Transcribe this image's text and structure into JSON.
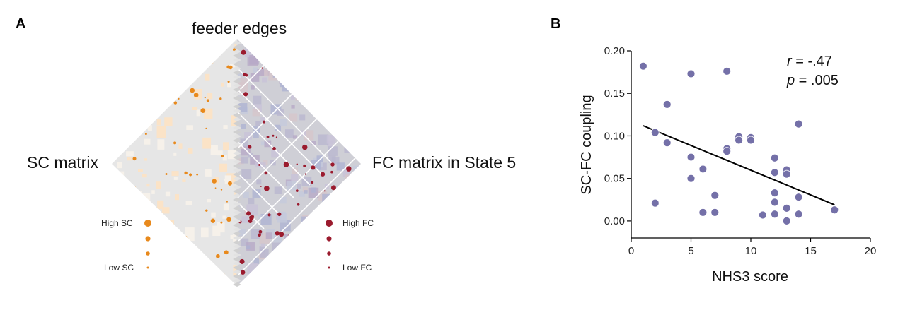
{
  "panel_a": {
    "label": "A",
    "top_label": "feeder edges",
    "left_label": "SC matrix",
    "right_label": "FC matrix in State 5",
    "legend_sc": {
      "high": "High SC",
      "low": "Low SC",
      "color": "#e8891c"
    },
    "legend_fc": {
      "high": "High FC",
      "low": "Low FC",
      "color": "#9b1b2e"
    }
  },
  "panel_b": {
    "label": "B",
    "stat_r_label": "r",
    "stat_r_value": " = -.47",
    "stat_p_label": "p",
    "stat_p_value": " = .005"
  },
  "chart_data": {
    "type": "scatter",
    "xlabel": "NHS3 score",
    "ylabel": "SC-FC coupling",
    "xlim": [
      0,
      20
    ],
    "ylim": [
      -0.02,
      0.2
    ],
    "xticks": [
      0,
      5,
      10,
      15,
      20
    ],
    "yticks": [
      0.0,
      0.05,
      0.1,
      0.15,
      0.2
    ],
    "ytick_labels": [
      "0.00",
      "0.05",
      "0.10",
      "0.15",
      "0.20"
    ],
    "point_color": "#7470a8",
    "points": [
      [
        1,
        0.182
      ],
      [
        2,
        0.104
      ],
      [
        2,
        0.021
      ],
      [
        3,
        0.137
      ],
      [
        3,
        0.092
      ],
      [
        5,
        0.173
      ],
      [
        5,
        0.075
      ],
      [
        5,
        0.05
      ],
      [
        6,
        0.061
      ],
      [
        6,
        0.01
      ],
      [
        7,
        0.03
      ],
      [
        7,
        0.01
      ],
      [
        8,
        0.176
      ],
      [
        8,
        0.085
      ],
      [
        8,
        0.082
      ],
      [
        9,
        0.099
      ],
      [
        9,
        0.095
      ],
      [
        10,
        0.098
      ],
      [
        10,
        0.095
      ],
      [
        11,
        0.007
      ],
      [
        12,
        0.074
      ],
      [
        12,
        0.057
      ],
      [
        12,
        0.033
      ],
      [
        12,
        0.022
      ],
      [
        12,
        0.008
      ],
      [
        13,
        0.06
      ],
      [
        13,
        0.055
      ],
      [
        13,
        0.015
      ],
      [
        13,
        0.0
      ],
      [
        14,
        0.114
      ],
      [
        14,
        0.028
      ],
      [
        14,
        0.008
      ],
      [
        17,
        0.013
      ]
    ],
    "fit_line": {
      "x": [
        1,
        17
      ],
      "y": [
        0.112,
        0.019
      ]
    }
  }
}
